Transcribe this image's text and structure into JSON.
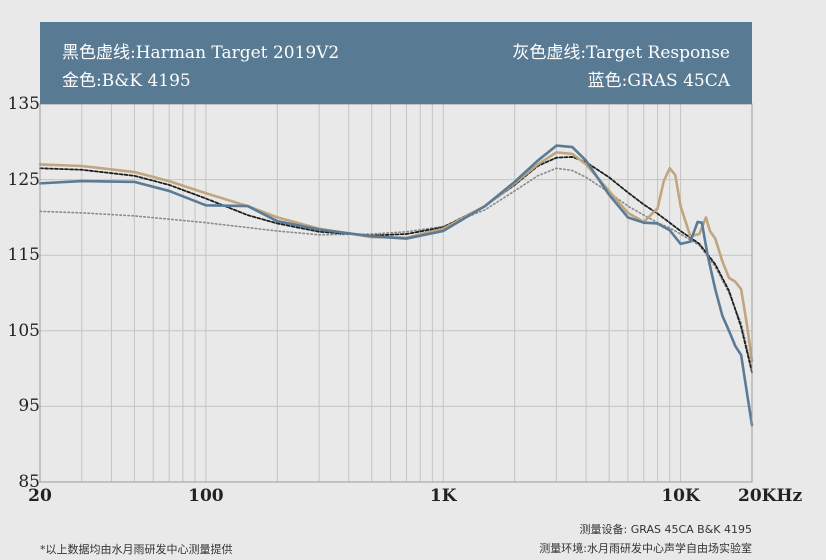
{
  "legend": {
    "top_left": "黑色虚线:Harman Target 2019V2",
    "bottom_left": "金色:B&K 4195",
    "top_right": "灰色虚线:Target Response",
    "bottom_right": "蓝色:GRAS 45CA"
  },
  "footnotes": {
    "left": "*以上数据均由水月雨研发中心测量提供",
    "right_line1": "测量设备: GRAS 45CA    B&K 4195",
    "right_line2": "测量环境:水月雨研发中心声学自由场实验室"
  },
  "colors": {
    "banner": "#587a92",
    "background": "#e9e9e9",
    "grid": "#c4c4c4"
  },
  "chart_data": {
    "type": "line",
    "x_scale": "log",
    "xlim": [
      20,
      20000
    ],
    "ylim": [
      85,
      135
    ],
    "grid": true,
    "legend_position": "top-banner",
    "y_ticks": [
      {
        "value": 85,
        "label": "85"
      },
      {
        "value": 95,
        "label": "95"
      },
      {
        "value": 105,
        "label": "105"
      },
      {
        "value": 115,
        "label": "115"
      },
      {
        "value": 125,
        "label": "125"
      },
      {
        "value": 135,
        "label": "135"
      }
    ],
    "x_ticks": [
      {
        "value": 20,
        "label": "20"
      },
      {
        "value": 100,
        "label": "100"
      },
      {
        "value": 1000,
        "label": "1K"
      },
      {
        "value": 10000,
        "label": "10K"
      },
      {
        "value": 20000,
        "label": "20KHz"
      }
    ],
    "series": [
      {
        "name": "Target Response",
        "color": "#8a8a8a",
        "style": "dotted",
        "points": [
          [
            20,
            120.8
          ],
          [
            30,
            120.6
          ],
          [
            50,
            120.2
          ],
          [
            100,
            119.3
          ],
          [
            200,
            118.2
          ],
          [
            300,
            117.7
          ],
          [
            500,
            117.8
          ],
          [
            700,
            118.1
          ],
          [
            1000,
            118.8
          ],
          [
            1500,
            121
          ],
          [
            2000,
            123.5
          ],
          [
            2500,
            125.5
          ],
          [
            3000,
            126.5
          ],
          [
            3500,
            126.2
          ],
          [
            4000,
            125.3
          ],
          [
            5000,
            123.3
          ],
          [
            6000,
            121.5
          ],
          [
            7000,
            120.3
          ],
          [
            8000,
            119.3
          ],
          [
            9000,
            118.6
          ],
          [
            10000,
            117.8
          ],
          [
            12000,
            116.3
          ],
          [
            14000,
            113.5
          ],
          [
            16000,
            110
          ],
          [
            18000,
            106
          ],
          [
            20000,
            100
          ]
        ]
      },
      {
        "name": "Harman Target 2019V2",
        "color": "#1f1f1f",
        "style": "dashed",
        "points": [
          [
            20,
            126.5
          ],
          [
            30,
            126.3
          ],
          [
            50,
            125.5
          ],
          [
            70,
            124.3
          ],
          [
            100,
            122.5
          ],
          [
            150,
            120.3
          ],
          [
            200,
            119.2
          ],
          [
            300,
            118.1
          ],
          [
            500,
            117.6
          ],
          [
            700,
            117.8
          ],
          [
            1000,
            118.7
          ],
          [
            1500,
            121.5
          ],
          [
            2000,
            124.3
          ],
          [
            2500,
            126.8
          ],
          [
            3000,
            127.9
          ],
          [
            3500,
            128
          ],
          [
            4000,
            127.3
          ],
          [
            5000,
            125.3
          ],
          [
            6000,
            123.3
          ],
          [
            7000,
            121.7
          ],
          [
            8000,
            120.5
          ],
          [
            9000,
            119.3
          ],
          [
            10000,
            118.2
          ],
          [
            12000,
            116.5
          ],
          [
            14000,
            113.8
          ],
          [
            16000,
            110.3
          ],
          [
            18000,
            105.5
          ],
          [
            20000,
            99.5
          ]
        ]
      },
      {
        "name": "B&K 4195",
        "color": "#c0a67f",
        "style": "solid",
        "points": [
          [
            20,
            127
          ],
          [
            30,
            126.8
          ],
          [
            50,
            126
          ],
          [
            70,
            124.8
          ],
          [
            100,
            123.2
          ],
          [
            150,
            121.5
          ],
          [
            200,
            120
          ],
          [
            300,
            118.5
          ],
          [
            500,
            117.4
          ],
          [
            700,
            117.3
          ],
          [
            1000,
            118.5
          ],
          [
            1500,
            121.5
          ],
          [
            2000,
            124.5
          ],
          [
            2500,
            127
          ],
          [
            3000,
            128.6
          ],
          [
            3500,
            128.4
          ],
          [
            4000,
            127
          ],
          [
            5000,
            123.5
          ],
          [
            6000,
            120.6
          ],
          [
            7000,
            119.4
          ],
          [
            8000,
            121.2
          ],
          [
            8500,
            124.8
          ],
          [
            9000,
            126.5
          ],
          [
            9500,
            125.6
          ],
          [
            10000,
            121.5
          ],
          [
            11000,
            117.5
          ],
          [
            12000,
            117.8
          ],
          [
            12800,
            120
          ],
          [
            13300,
            118.2
          ],
          [
            14000,
            117.2
          ],
          [
            15000,
            114.2
          ],
          [
            16000,
            112
          ],
          [
            17000,
            111.5
          ],
          [
            18000,
            110.5
          ],
          [
            19000,
            106
          ],
          [
            20000,
            101
          ]
        ]
      },
      {
        "name": "GRAS 45CA",
        "color": "#5a7a96",
        "style": "solid",
        "points": [
          [
            20,
            124.5
          ],
          [
            30,
            124.8
          ],
          [
            50,
            124.7
          ],
          [
            70,
            123.5
          ],
          [
            100,
            121.6
          ],
          [
            150,
            121.5
          ],
          [
            200,
            119.5
          ],
          [
            300,
            118.4
          ],
          [
            500,
            117.5
          ],
          [
            700,
            117.2
          ],
          [
            1000,
            118.2
          ],
          [
            1500,
            121.5
          ],
          [
            2000,
            124.7
          ],
          [
            2500,
            127.5
          ],
          [
            3000,
            129.5
          ],
          [
            3500,
            129.3
          ],
          [
            4000,
            127.5
          ],
          [
            5000,
            123
          ],
          [
            6000,
            120
          ],
          [
            7000,
            119.3
          ],
          [
            8000,
            119.2
          ],
          [
            9000,
            118.3
          ],
          [
            10000,
            116.5
          ],
          [
            11000,
            116.8
          ],
          [
            11800,
            119.4
          ],
          [
            12300,
            119.3
          ],
          [
            13000,
            115
          ],
          [
            14000,
            110.5
          ],
          [
            15000,
            107
          ],
          [
            16000,
            105
          ],
          [
            17000,
            103
          ],
          [
            18000,
            101.8
          ],
          [
            19000,
            97
          ],
          [
            20000,
            92.5
          ]
        ]
      }
    ]
  }
}
